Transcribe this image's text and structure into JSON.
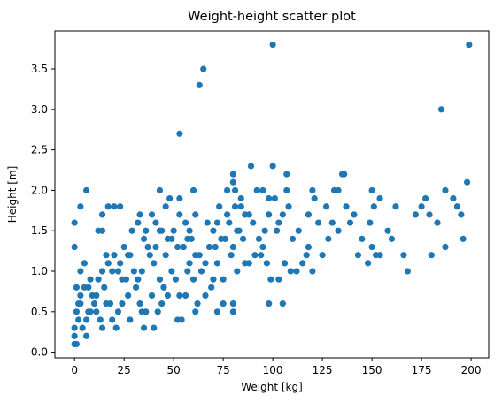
{
  "chart_data": {
    "type": "scatter",
    "title": "Weight-height scatter plot",
    "xlabel": "Weight [kg]",
    "ylabel": "Height [m]",
    "xlim": [
      -9.9,
      208.9
    ],
    "ylim": [
      -0.07,
      3.97
    ],
    "xticks": [
      0,
      25,
      50,
      75,
      100,
      125,
      150,
      175,
      200
    ],
    "yticks": [
      0.0,
      0.5,
      1.0,
      1.5,
      2.0,
      2.5,
      3.0,
      3.5
    ],
    "xtick_labels": [
      "0",
      "25",
      "50",
      "75",
      "100",
      "125",
      "150",
      "175",
      "200"
    ],
    "ytick_labels": [
      "0.0",
      "0.5",
      "1.0",
      "1.5",
      "2.0",
      "2.5",
      "3.0",
      "3.5"
    ],
    "grid": false,
    "legend": "none",
    "point_color": "#1f77b4",
    "points": [
      [
        100,
        3.8
      ],
      [
        199,
        3.8
      ],
      [
        65,
        3.5
      ],
      [
        63,
        3.3
      ],
      [
        185,
        3.0
      ],
      [
        53,
        2.7
      ],
      [
        89,
        2.3
      ],
      [
        100,
        2.3
      ],
      [
        80,
        2.2
      ],
      [
        107,
        2.2
      ],
      [
        135,
        2.2
      ],
      [
        136,
        2.2
      ],
      [
        198,
        2.1
      ],
      [
        80,
        2.1
      ],
      [
        92,
        2.0
      ],
      [
        6,
        2.0
      ],
      [
        43,
        2.0
      ],
      [
        60,
        2.0
      ],
      [
        77,
        2.0
      ],
      [
        81,
        2.0
      ],
      [
        95,
        2.0
      ],
      [
        107,
        2.0
      ],
      [
        120,
        2.0
      ],
      [
        131,
        2.0
      ],
      [
        133,
        2.0
      ],
      [
        150,
        2.0
      ],
      [
        187,
        2.0
      ],
      [
        48,
        1.9
      ],
      [
        53,
        1.9
      ],
      [
        84,
        1.9
      ],
      [
        98,
        1.9
      ],
      [
        101,
        1.9
      ],
      [
        121,
        1.9
      ],
      [
        154,
        1.9
      ],
      [
        177,
        1.9
      ],
      [
        3,
        1.8
      ],
      [
        17,
        1.8
      ],
      [
        20,
        1.8
      ],
      [
        23,
        1.8
      ],
      [
        46,
        1.8
      ],
      [
        73,
        1.8
      ],
      [
        81,
        1.8
      ],
      [
        84,
        1.8
      ],
      [
        108,
        1.8
      ],
      [
        127,
        1.8
      ],
      [
        151,
        1.8
      ],
      [
        162,
        1.8
      ],
      [
        175,
        1.8
      ],
      [
        14,
        1.7
      ],
      [
        33,
        1.7
      ],
      [
        39,
        1.7
      ],
      [
        53,
        1.7
      ],
      [
        61,
        1.7
      ],
      [
        77,
        1.7
      ],
      [
        88,
        1.7
      ],
      [
        98,
        1.7
      ],
      [
        105,
        1.7
      ],
      [
        118,
        1.7
      ],
      [
        141,
        1.7
      ],
      [
        179,
        1.7
      ],
      [
        195,
        1.7
      ],
      [
        0,
        1.6
      ],
      [
        32,
        1.6
      ],
      [
        41,
        1.6
      ],
      [
        56,
        1.6
      ],
      [
        67,
        1.6
      ],
      [
        72,
        1.6
      ],
      [
        90,
        1.6
      ],
      [
        103,
        1.6
      ],
      [
        130,
        1.6
      ],
      [
        139,
        1.6
      ],
      [
        149,
        1.6
      ],
      [
        12,
        1.5
      ],
      [
        14,
        1.5
      ],
      [
        29,
        1.5
      ],
      [
        36,
        1.5
      ],
      [
        44,
        1.5
      ],
      [
        58,
        1.5
      ],
      [
        70,
        1.5
      ],
      [
        83,
        1.5
      ],
      [
        96,
        1.5
      ],
      [
        113,
        1.5
      ],
      [
        133,
        1.5
      ],
      [
        35,
        1.4
      ],
      [
        49,
        1.4
      ],
      [
        57,
        1.4
      ],
      [
        74,
        1.4
      ],
      [
        85,
        1.4
      ],
      [
        110,
        1.4
      ],
      [
        25,
        1.3
      ],
      [
        37,
        1.3
      ],
      [
        52,
        1.3
      ],
      [
        68,
        1.3
      ],
      [
        80,
        1.3
      ],
      [
        95,
        1.3
      ],
      [
        118,
        1.3
      ],
      [
        150,
        1.3
      ],
      [
        187,
        1.3
      ],
      [
        0,
        1.3
      ],
      [
        16,
        1.2
      ],
      [
        28,
        1.2
      ],
      [
        46,
        1.2
      ],
      [
        61,
        1.2
      ],
      [
        79,
        1.2
      ],
      [
        91,
        1.2
      ],
      [
        125,
        1.2
      ],
      [
        152,
        1.2
      ],
      [
        154,
        1.2
      ],
      [
        180,
        1.2
      ],
      [
        5,
        1.1
      ],
      [
        23,
        1.1
      ],
      [
        40,
        1.1
      ],
      [
        58,
        1.1
      ],
      [
        72,
        1.1
      ],
      [
        88,
        1.1
      ],
      [
        106,
        1.1
      ],
      [
        148,
        1.1
      ],
      [
        3,
        1.0
      ],
      [
        19,
        1.0
      ],
      [
        34,
        1.0
      ],
      [
        49,
        1.0
      ],
      [
        64,
        1.0
      ],
      [
        82,
        1.0
      ],
      [
        112,
        1.0
      ],
      [
        120,
        1.0
      ],
      [
        168,
        1.0
      ],
      [
        8,
        0.9
      ],
      [
        26,
        0.9
      ],
      [
        43,
        0.9
      ],
      [
        60,
        0.9
      ],
      [
        75,
        0.9
      ],
      [
        103,
        0.9
      ],
      [
        1,
        0.8
      ],
      [
        15,
        0.8
      ],
      [
        31,
        0.8
      ],
      [
        45,
        0.8
      ],
      [
        69,
        0.8
      ],
      [
        11,
        0.7
      ],
      [
        27,
        0.7
      ],
      [
        39,
        0.7
      ],
      [
        53,
        0.7
      ],
      [
        56,
        0.7
      ],
      [
        3,
        0.6
      ],
      [
        18,
        0.6
      ],
      [
        33,
        0.6
      ],
      [
        62,
        0.6
      ],
      [
        75,
        0.6
      ],
      [
        80,
        0.6
      ],
      [
        98,
        0.6
      ],
      [
        105,
        0.6
      ],
      [
        7,
        0.5
      ],
      [
        22,
        0.5
      ],
      [
        34,
        0.5
      ],
      [
        42,
        0.5
      ],
      [
        61,
        0.5
      ],
      [
        72,
        0.5
      ],
      [
        80,
        0.5
      ],
      [
        2,
        0.4
      ],
      [
        13,
        0.4
      ],
      [
        19,
        0.4
      ],
      [
        52,
        0.4
      ],
      [
        54,
        0.4
      ],
      [
        4,
        0.3
      ],
      [
        14,
        0.3
      ],
      [
        21,
        0.3
      ],
      [
        35,
        0.3
      ],
      [
        40,
        0.3
      ],
      [
        0,
        0.2
      ],
      [
        6,
        0.2
      ],
      [
        1,
        0.1
      ],
      [
        0,
        0.1
      ],
      [
        0,
        0.3
      ],
      [
        1,
        0.5
      ],
      [
        2,
        0.6
      ],
      [
        3,
        0.7
      ],
      [
        5,
        0.8
      ],
      [
        7,
        0.8
      ],
      [
        9,
        0.7
      ],
      [
        10,
        0.6
      ],
      [
        12,
        0.9
      ],
      [
        14,
        1.0
      ],
      [
        17,
        1.1
      ],
      [
        20,
        1.2
      ],
      [
        22,
        1.0
      ],
      [
        24,
        0.9
      ],
      [
        27,
        1.2
      ],
      [
        30,
        1.0
      ],
      [
        32,
        0.9
      ],
      [
        38,
        1.2
      ],
      [
        41,
        1.3
      ],
      [
        43,
        1.5
      ],
      [
        47,
        1.4
      ],
      [
        50,
        1.5
      ],
      [
        55,
        1.3
      ],
      [
        59,
        1.4
      ],
      [
        63,
        1.2
      ],
      [
        66,
        1.1
      ],
      [
        71,
        1.3
      ],
      [
        76,
        1.4
      ],
      [
        78,
        1.6
      ],
      [
        82,
        1.5
      ],
      [
        86,
        1.7
      ],
      [
        93,
        1.4
      ],
      [
        97,
        1.1
      ],
      [
        102,
        1.5
      ],
      [
        109,
        1.0
      ],
      [
        115,
        1.1
      ],
      [
        123,
        1.6
      ],
      [
        137,
        1.8
      ],
      [
        145,
        1.4
      ],
      [
        158,
        1.5
      ],
      [
        166,
        1.2
      ],
      [
        172,
        1.7
      ],
      [
        191,
        1.9
      ],
      [
        196,
        1.4
      ],
      [
        6,
        0.4
      ],
      [
        8,
        0.5
      ],
      [
        11,
        0.5
      ],
      [
        16,
        0.6
      ],
      [
        24,
        0.6
      ],
      [
        28,
        0.4
      ],
      [
        36,
        0.5
      ],
      [
        44,
        0.6
      ],
      [
        47,
        0.7
      ],
      [
        51,
        0.9
      ],
      [
        57,
        1.0
      ],
      [
        66,
        0.7
      ],
      [
        70,
        0.9
      ],
      [
        86,
        1.1
      ],
      [
        94,
        1.2
      ],
      [
        99,
        0.9
      ],
      [
        117,
        1.2
      ],
      [
        128,
        1.4
      ],
      [
        143,
        1.2
      ],
      [
        160,
        1.4
      ],
      [
        183,
        1.6
      ],
      [
        193,
        1.8
      ]
    ]
  }
}
